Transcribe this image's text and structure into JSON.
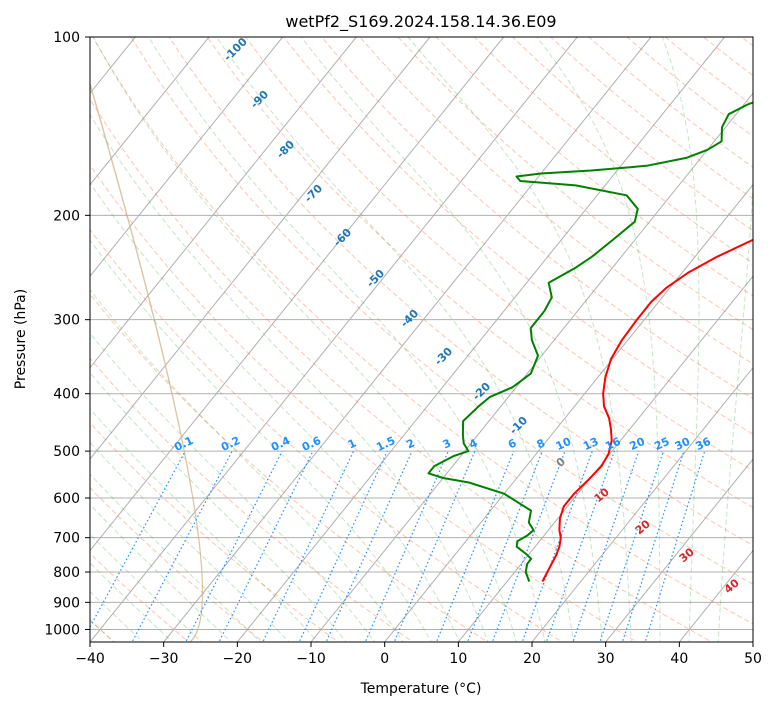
{
  "chart_data": {
    "type": "line",
    "title": "wetPf2_S169.2024.158.14.36.E09",
    "xlabel": "Temperature (°C)",
    "ylabel": "Pressure (hPa)",
    "xlim": [
      -40,
      50
    ],
    "ylim": [
      1050,
      100
    ],
    "yscale": "log",
    "x_ticks": [
      -40,
      -30,
      -20,
      -10,
      0,
      10,
      20,
      30,
      40,
      50
    ],
    "y_ticks": [
      1000,
      900,
      800,
      700,
      600,
      500,
      400,
      300,
      200,
      100
    ],
    "grid": true,
    "series": [
      {
        "color": "#ff0000",
        "points": [
          [
            14.8,
            830
          ],
          [
            14.3,
            790
          ],
          [
            13.8,
            750
          ],
          [
            13.3,
            725
          ],
          [
            12.5,
            700
          ],
          [
            11.5,
            680
          ],
          [
            10.3,
            650
          ],
          [
            9.5,
            620
          ],
          [
            9.5,
            590
          ],
          [
            9.9,
            560
          ],
          [
            10.2,
            530
          ],
          [
            9.8,
            505
          ],
          [
            8.8,
            480
          ],
          [
            7.5,
            460
          ],
          [
            6.0,
            440
          ],
          [
            4.0,
            420
          ],
          [
            2.5,
            400
          ],
          [
            1.0,
            375
          ],
          [
            -0.2,
            350
          ],
          [
            -0.8,
            325
          ],
          [
            -1.0,
            300
          ],
          [
            -1.0,
            280
          ],
          [
            -0.5,
            265
          ],
          [
            0.8,
            250
          ],
          [
            3.0,
            235
          ],
          [
            6.0,
            220
          ],
          [
            9.0,
            205
          ],
          [
            11.5,
            190
          ],
          [
            13.5,
            175
          ],
          [
            14.8,
            160
          ],
          [
            15.5,
            150
          ],
          [
            16.6,
            140
          ],
          [
            18.5,
            130
          ],
          [
            20.0,
            120
          ],
          [
            20.3,
            112
          ],
          [
            20.8,
            106
          ],
          [
            21.5,
            100
          ]
        ]
      },
      {
        "color": "#008000",
        "points": [
          [
            13.0,
            830
          ],
          [
            11.5,
            800
          ],
          [
            10.8,
            775
          ],
          [
            10.8,
            760
          ],
          [
            9.5,
            745
          ],
          [
            7.5,
            725
          ],
          [
            7.0,
            710
          ],
          [
            7.7,
            695
          ],
          [
            8.0,
            680
          ],
          [
            6.5,
            660
          ],
          [
            5.5,
            630
          ],
          [
            0.0,
            590
          ],
          [
            -6.0,
            565
          ],
          [
            -10.0,
            555
          ],
          [
            -12.5,
            545
          ],
          [
            -12.5,
            530
          ],
          [
            -11.0,
            510
          ],
          [
            -9.5,
            500
          ],
          [
            -11.0,
            485
          ],
          [
            -12.0,
            470
          ],
          [
            -13.5,
            445
          ],
          [
            -13.0,
            420
          ],
          [
            -12.5,
            405
          ],
          [
            -10.5,
            390
          ],
          [
            -9.5,
            370
          ],
          [
            -10.5,
            345
          ],
          [
            -13.0,
            325
          ],
          [
            -14.5,
            310
          ],
          [
            -14.5,
            290
          ],
          [
            -15.0,
            275
          ],
          [
            -17.0,
            260
          ],
          [
            -15.0,
            245
          ],
          [
            -14.0,
            235
          ],
          [
            -13.0,
            220
          ],
          [
            -12.0,
            205
          ],
          [
            -13.0,
            195
          ],
          [
            -16.0,
            185
          ],
          [
            -24.0,
            178
          ],
          [
            -32.0,
            175
          ],
          [
            -33.0,
            172
          ],
          [
            -30.0,
            170
          ],
          [
            -23.5,
            168
          ],
          [
            -16.5,
            165
          ],
          [
            -12.0,
            160
          ],
          [
            -10.0,
            155
          ],
          [
            -9.0,
            150
          ],
          [
            -10.5,
            142
          ],
          [
            -11.0,
            135
          ],
          [
            -9.5,
            130
          ],
          [
            -8.0,
            127
          ],
          [
            -4.5,
            120
          ],
          [
            -2.5,
            110
          ],
          [
            -1.0,
            100
          ]
        ]
      }
    ],
    "dry_adiabat_labels": [
      "-100",
      "-90",
      "-80",
      "-70",
      "-60",
      "-50",
      "-40",
      "-30",
      "-20",
      "-10"
    ],
    "moist_adiabat_labels": [
      "0",
      "10",
      "20",
      "30",
      "40"
    ],
    "mixing_ratio_labels": [
      "0.1",
      "0.2",
      "0.4",
      "0.6",
      "1",
      "1.5",
      "2",
      "3",
      "4",
      "6",
      "8",
      "10",
      "13",
      "16",
      "20",
      "25",
      "30",
      "36"
    ]
  }
}
